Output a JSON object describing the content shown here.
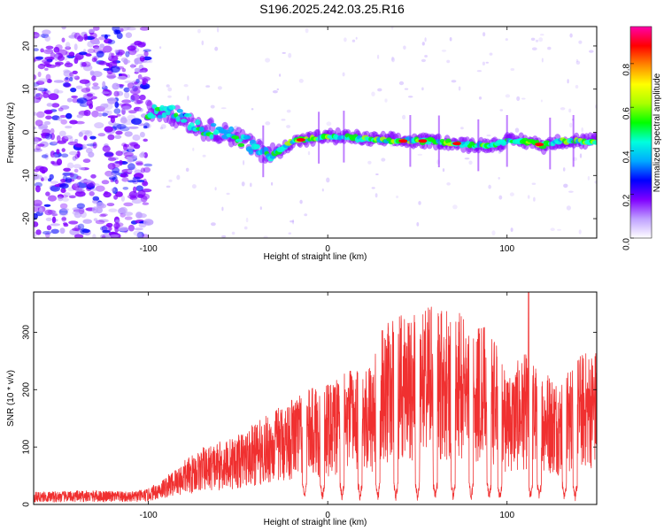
{
  "title": "S196.2025.242.03.25.R16",
  "chart_data": [
    {
      "type": "heatmap",
      "name": "spectrogram",
      "xlabel": "Height of straight line (km)",
      "ylabel": "Frequency (Hz)",
      "xlim": [
        -164,
        150
      ],
      "ylim": [
        -24.5,
        24.5
      ],
      "xticks": [
        -100,
        0,
        100
      ],
      "xtick_labels": [
        "-100",
        "0",
        "100"
      ],
      "yticks": [
        -20,
        -10,
        0,
        10,
        20
      ],
      "ytick_labels": [
        "-20",
        "-10",
        "0",
        "10",
        "20"
      ],
      "colorbar": {
        "label": "Normalized spectral amplitude",
        "range": [
          0,
          0.97
        ],
        "ticks": [
          0,
          0.2,
          0.4,
          0.6,
          0.8
        ],
        "tick_labels": [
          "0.0",
          "0.2",
          "0.4",
          "0.6",
          "0.8"
        ],
        "colors": [
          "#ffffff",
          "#bfa0ff",
          "#8000ff",
          "#0000ff",
          "#00aaff",
          "#00ffdd",
          "#00ff00",
          "#aaff00",
          "#ffff00",
          "#ff8800",
          "#ff0000",
          "#ff00aa"
        ]
      },
      "ridge": {
        "description": "dominant frequency track",
        "x": [
          -100,
          -90,
          -80,
          -70,
          -60,
          -50,
          -40,
          -30,
          -25,
          -20,
          -10,
          0,
          10,
          20,
          40,
          60,
          80,
          90,
          100,
          110,
          120,
          130,
          150
        ],
        "y": [
          5,
          5,
          3,
          1,
          0,
          -1,
          -4,
          -5,
          -4,
          -2,
          -1.5,
          -1,
          -1,
          -1.5,
          -2,
          -2,
          -3,
          -3,
          -2,
          -2,
          -3,
          -2,
          -2
        ]
      },
      "noise_region_x": [
        -164,
        -100
      ]
    },
    {
      "type": "line",
      "name": "snr",
      "xlabel": "Height of straight line (km)",
      "ylabel": "SNR (10 * v/v)",
      "xlim": [
        -164,
        150
      ],
      "ylim": [
        0,
        370
      ],
      "xticks": [
        -100,
        0,
        100
      ],
      "xtick_labels": [
        "-100",
        "0",
        "100"
      ],
      "yticks": [
        0,
        100,
        200,
        300
      ],
      "ytick_labels": [
        "0",
        "100",
        "200",
        "300"
      ],
      "color": "#f03030",
      "envelope": {
        "x": [
          -164,
          -130,
          -110,
          -100,
          -90,
          -80,
          -70,
          -60,
          -50,
          -40,
          -30,
          -20,
          -10,
          0,
          10,
          20,
          25,
          30,
          40,
          50,
          60,
          70,
          80,
          90,
          100,
          110,
          120,
          130,
          140,
          150
        ],
        "y": [
          20,
          22,
          20,
          25,
          45,
          70,
          90,
          100,
          110,
          130,
          150,
          170,
          185,
          190,
          210,
          230,
          220,
          280,
          300,
          310,
          315,
          310,
          300,
          280,
          210,
          240,
          220,
          200,
          240,
          250
        ]
      },
      "dips_x": [
        -13,
        -3,
        8,
        18,
        28,
        38,
        50,
        60,
        70,
        80,
        90,
        96,
        113,
        118,
        132,
        138
      ],
      "peak": {
        "x": 112,
        "y": 370
      }
    }
  ]
}
